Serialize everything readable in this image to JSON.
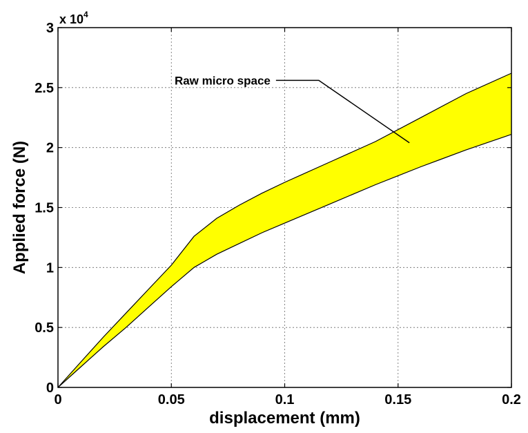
{
  "chart_data": {
    "type": "area",
    "xlabel": "displacement (mm)",
    "ylabel": "Applied force (N)",
    "xlim": [
      0,
      0.2
    ],
    "ylim": [
      0,
      30000
    ],
    "y_multiplier_label": "x 10",
    "y_multiplier_exponent": "4",
    "xticks": [
      0,
      0.05,
      0.1,
      0.15,
      0.2
    ],
    "xtick_labels": [
      "0",
      "0.05",
      "0.1",
      "0.15",
      "0.2"
    ],
    "yticks": [
      0,
      5000,
      10000,
      15000,
      20000,
      25000,
      30000
    ],
    "ytick_labels": [
      "0",
      "0.5",
      "1",
      "1.5",
      "2",
      "2.5",
      "3"
    ],
    "grid": true,
    "fill_color": "#ffff00",
    "band": {
      "upper": {
        "x": [
          0,
          0.01,
          0.02,
          0.03,
          0.04,
          0.05,
          0.06,
          0.07,
          0.08,
          0.09,
          0.1,
          0.12,
          0.14,
          0.16,
          0.18,
          0.2
        ],
        "y": [
          0,
          2100,
          4200,
          6200,
          8200,
          10200,
          12600,
          14100,
          15200,
          16200,
          17100,
          18800,
          20500,
          22500,
          24500,
          26200
        ]
      },
      "lower": {
        "x": [
          0,
          0.01,
          0.02,
          0.03,
          0.04,
          0.05,
          0.06,
          0.07,
          0.08,
          0.09,
          0.1,
          0.12,
          0.14,
          0.16,
          0.18,
          0.2
        ],
        "y": [
          0,
          1700,
          3400,
          5000,
          6700,
          8400,
          10000,
          11100,
          12000,
          12900,
          13700,
          15300,
          16900,
          18400,
          19800,
          21100
        ]
      }
    },
    "annotations": [
      {
        "text": "Raw micro space",
        "x": 0.056,
        "y": 25600,
        "arrow_to": [
          0.155,
          20400
        ]
      }
    ]
  }
}
